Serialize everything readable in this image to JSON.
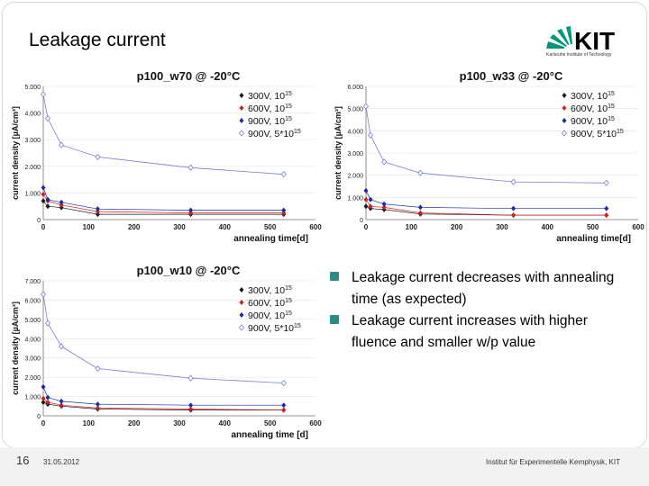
{
  "slide": {
    "title": "Leakage current",
    "logo_text": "KIT",
    "logo_subtitle": "Karlsruhe Institute of Technology",
    "page_number": "16",
    "date": "31.05.2012",
    "institute": "Institut für Experimentelle Kernphysik, KIT"
  },
  "bullets": [
    "Leakage current decreases with annealing time (as expected)",
    "Leakage current increases with higher fluence and smaller w/p value"
  ],
  "colors": {
    "accent": "#2c8c82",
    "s300": "#1a1a1a",
    "s600": "#cc2222",
    "s900": "#1a2aa8",
    "s900h": "#7a80cc"
  },
  "chart_data": [
    {
      "id": "w70",
      "type": "line",
      "title": "p100_w70 @ -20°C",
      "xlabel": "annealing time[d]",
      "ylabel": "current density [µA/cm³]",
      "xlim": [
        0,
        600
      ],
      "ylim": [
        0,
        5
      ],
      "xticks": [
        "0",
        "100",
        "200",
        "300",
        "400",
        "500",
        "600"
      ],
      "yticks": [
        "0",
        "1.000",
        "2.000",
        "3.000",
        "4.000",
        "5.000"
      ],
      "x": [
        0,
        10,
        40,
        120,
        325,
        530
      ],
      "series": [
        {
          "name": "300V, 10¹⁵",
          "legend": [
            "300V, 10",
            "15"
          ],
          "values": [
            0.7,
            0.5,
            0.45,
            0.2,
            0.2,
            0.2
          ]
        },
        {
          "name": "600V, 10¹⁵",
          "legend": [
            "600V, 10",
            "15"
          ],
          "values": [
            0.95,
            0.7,
            0.55,
            0.3,
            0.25,
            0.25
          ]
        },
        {
          "name": "900V, 10¹⁵",
          "legend": [
            "900V, 10",
            "15"
          ],
          "values": [
            1.2,
            0.75,
            0.65,
            0.4,
            0.35,
            0.35
          ]
        },
        {
          "name": "900V, 5*10¹⁵",
          "legend": [
            "900V, 5*10",
            "15"
          ],
          "values": [
            4.7,
            3.8,
            2.8,
            2.35,
            1.95,
            1.7
          ]
        }
      ]
    },
    {
      "id": "w33",
      "type": "line",
      "title": "p100_w33 @ -20°C",
      "xlabel": "annealing time[d]",
      "ylabel": "current density [µA/cm³]",
      "xlim": [
        0,
        600
      ],
      "ylim": [
        0,
        6
      ],
      "xticks": [
        "0",
        "100",
        "200",
        "300",
        "400",
        "500",
        "600"
      ],
      "yticks": [
        "0",
        "1.000",
        "2.000",
        "3.000",
        "4.000",
        "5.000",
        "6.000"
      ],
      "x": [
        0,
        10,
        40,
        120,
        325,
        530
      ],
      "series": [
        {
          "name": "300V, 10¹⁵",
          "legend": [
            "300V, 10",
            "15"
          ],
          "values": [
            0.6,
            0.5,
            0.45,
            0.25,
            0.2,
            0.2
          ]
        },
        {
          "name": "600V, 10¹⁵",
          "legend": [
            "600V, 10",
            "15"
          ],
          "values": [
            0.9,
            0.6,
            0.55,
            0.3,
            0.2,
            0.2
          ]
        },
        {
          "name": "900V, 10¹⁵",
          "legend": [
            "900V, 10",
            "15"
          ],
          "values": [
            1.3,
            0.9,
            0.7,
            0.55,
            0.5,
            0.5
          ]
        },
        {
          "name": "900V, 5*10¹⁵",
          "legend": [
            "900V, 5*10",
            "15"
          ],
          "values": [
            5.1,
            3.8,
            2.6,
            2.1,
            1.7,
            1.65
          ]
        }
      ]
    },
    {
      "id": "w10",
      "type": "line",
      "title": "p100_w10 @ -20°C",
      "xlabel": "annealing time [d]",
      "ylabel": "current density [µA/cm³]",
      "xlim": [
        0,
        600
      ],
      "ylim": [
        0,
        7
      ],
      "xticks": [
        "0",
        "100",
        "200",
        "300",
        "400",
        "500",
        "600"
      ],
      "yticks": [
        "0",
        "1.000",
        "2.000",
        "3.000",
        "4.000",
        "5.000",
        "6.000",
        "7.000"
      ],
      "x": [
        0,
        10,
        40,
        120,
        325,
        530
      ],
      "series": [
        {
          "name": "300V, 10¹⁵",
          "legend": [
            "300V, 10",
            "15"
          ],
          "values": [
            0.7,
            0.6,
            0.5,
            0.35,
            0.3,
            0.3
          ]
        },
        {
          "name": "600V, 10¹⁵",
          "legend": [
            "600V, 10",
            "15"
          ],
          "values": [
            0.9,
            0.7,
            0.55,
            0.4,
            0.35,
            0.3
          ]
        },
        {
          "name": "900V, 10¹⁵",
          "legend": [
            "900V, 10",
            "15"
          ],
          "values": [
            1.5,
            0.95,
            0.75,
            0.6,
            0.55,
            0.55
          ]
        },
        {
          "name": "900V, 5*10¹⁵",
          "legend": [
            "900V, 5*10",
            "15"
          ],
          "values": [
            6.3,
            4.8,
            3.6,
            2.45,
            1.95,
            1.7
          ]
        }
      ]
    }
  ]
}
